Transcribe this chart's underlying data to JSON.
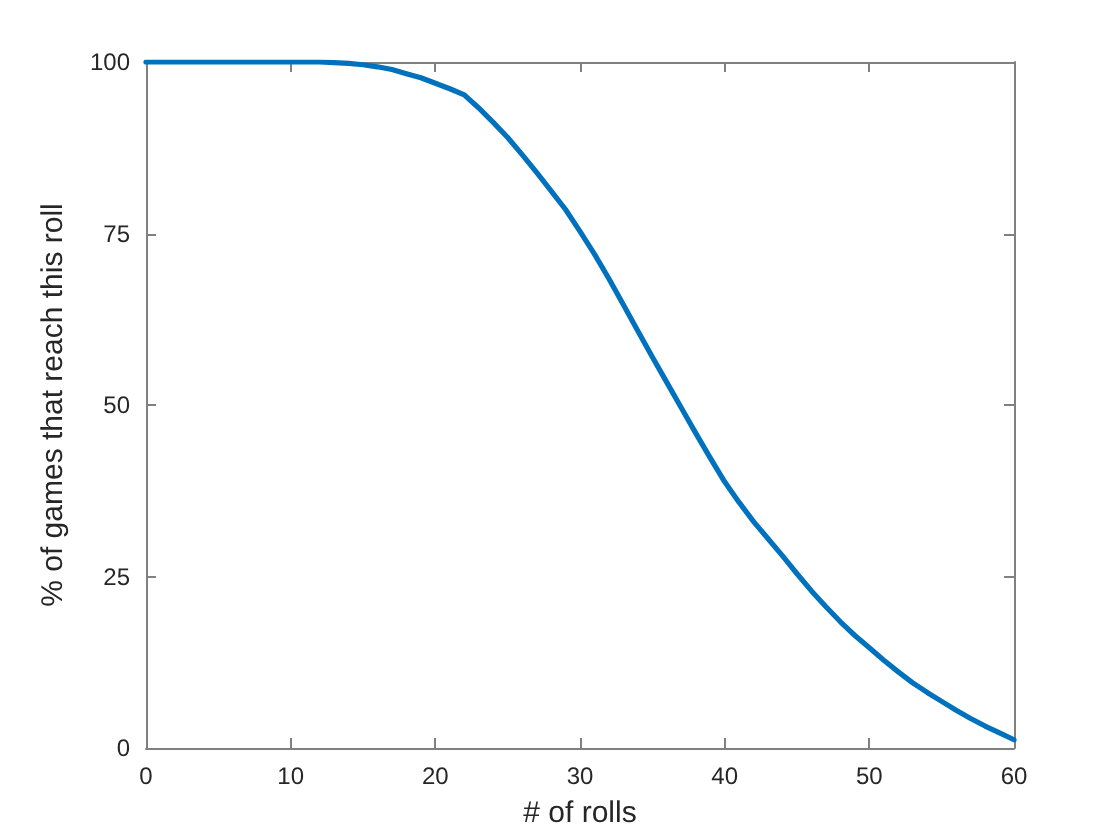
{
  "chart_data": {
    "type": "line",
    "xlabel": "# of rolls",
    "ylabel": "% of games that reach this roll",
    "x": [
      0,
      1,
      2,
      3,
      4,
      5,
      6,
      7,
      8,
      9,
      10,
      11,
      12,
      13,
      14,
      15,
      16,
      17,
      18,
      19,
      20,
      21,
      22,
      23,
      24,
      25,
      26,
      27,
      28,
      29,
      30,
      31,
      32,
      33,
      34,
      35,
      36,
      37,
      38,
      39,
      40,
      41,
      42,
      43,
      44,
      45,
      46,
      47,
      48,
      49,
      50,
      51,
      52,
      53,
      54,
      55,
      56,
      57,
      58,
      59,
      60
    ],
    "values": [
      100,
      100,
      100,
      100,
      100,
      100,
      100,
      100,
      100,
      100,
      100,
      100,
      100,
      99.9,
      99.8,
      99.6,
      99.3,
      98.9,
      98.3,
      97.7,
      96.9,
      96.1,
      95.2,
      93.3,
      91.2,
      89,
      86.5,
      83.9,
      81.2,
      78.5,
      75.3,
      72,
      68.4,
      64.6,
      60.8,
      57,
      53.3,
      49.6,
      45.9,
      42.3,
      38.8,
      35.8,
      33,
      30.5,
      28,
      25.4,
      22.9,
      20.6,
      18.4,
      16.4,
      14.6,
      12.8,
      11.1,
      9.5,
      8.1,
      6.8,
      5.5,
      4.3,
      3.2,
      2.2,
      1.2
    ],
    "color": "#0072bd",
    "marker": "none",
    "line_style": "solid",
    "xlim": [
      0,
      60
    ],
    "xticks": [
      0,
      10,
      20,
      30,
      40,
      50,
      60
    ],
    "ylim": [
      0,
      100
    ],
    "yticks": [
      0,
      25,
      50,
      75,
      100
    ]
  }
}
